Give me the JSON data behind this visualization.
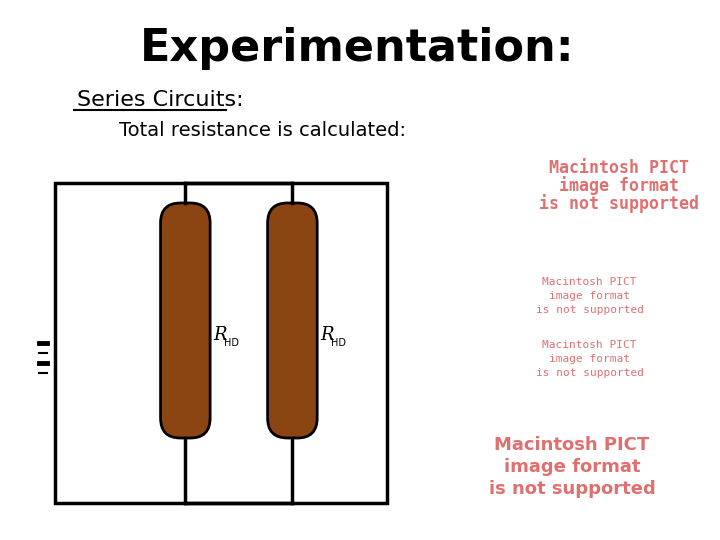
{
  "title": "Experimentation:",
  "title_fontsize": 32,
  "subtitle1": "Series Circuits:",
  "subtitle1_fontsize": 16,
  "subtitle2": "    Total resistance is calculated:",
  "subtitle2_fontsize": 14,
  "bg_color": "#ffffff",
  "circuit_color": "#000000",
  "resistor_color": "#8B4513",
  "pict_color": "#e07070",
  "pict_texts_top": [
    "Macintosh PICT",
    "image format",
    "is not supported"
  ],
  "pict_texts_small1": [
    "Macintosh PICT",
    "image format",
    "is not supported"
  ],
  "pict_texts_small2": [
    "Macintosh PICT",
    "image format",
    "is not supported"
  ],
  "pict_texts_large": [
    "Macintosh PICT",
    "image format",
    "is not supported"
  ]
}
